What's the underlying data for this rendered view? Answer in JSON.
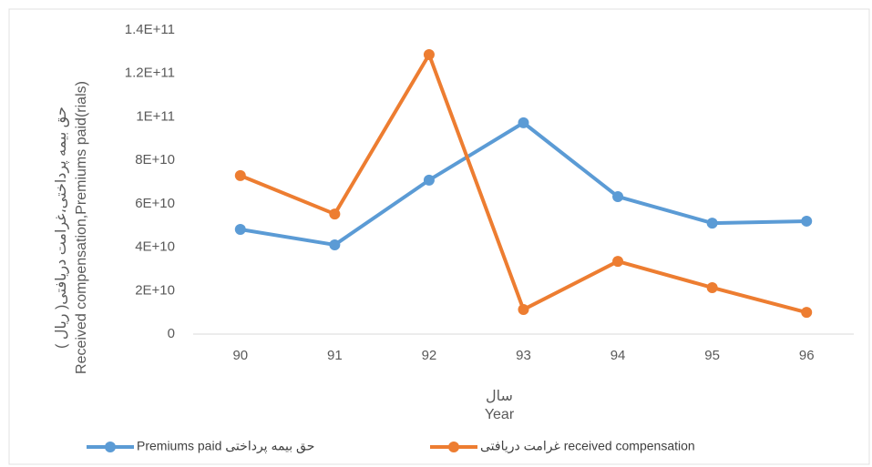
{
  "chart_data": {
    "type": "line",
    "categories": [
      "90",
      "91",
      "92",
      "93",
      "94",
      "95",
      "96"
    ],
    "series": [
      {
        "name": "Premiums paid حق  بیمه پرداختی",
        "color": "#5b9bd5",
        "values": [
          48200000000,
          41100000000,
          70900000000,
          97300000000,
          63300000000,
          51100000000,
          52000000000
        ]
      },
      {
        "name": "غرامت دریافتی received compensation",
        "color": "#ed7d31",
        "values": [
          73000000000,
          55300000000,
          128700000000,
          11300000000,
          33500000000,
          21400000000,
          10000000000
        ]
      }
    ],
    "ylim": [
      0,
      140000000000
    ],
    "yticks": [
      0,
      {
        "value": 20000000000,
        "label": "2E+10"
      },
      {
        "value": 40000000000,
        "label": "4E+10"
      },
      {
        "value": 60000000000,
        "label": "6E+10"
      },
      {
        "value": 80000000000,
        "label": "8E+10"
      },
      {
        "value": 100000000000,
        "label": "1E+11"
      },
      {
        "value": 120000000000,
        "label": "1.2E+11"
      },
      {
        "value": 140000000000,
        "label": "1.4E+11"
      }
    ],
    "y_label": [
      "حق بیمه پرداختی،غرامت دریافتی( ریال )",
      "Received compensation,Premiums paid(rials)"
    ],
    "x_label": [
      "سال",
      "Year"
    ],
    "grid": false
  }
}
